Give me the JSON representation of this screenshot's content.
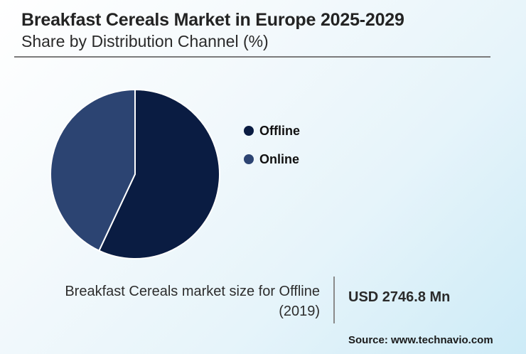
{
  "header": {
    "title": "Breakfast Cereals Market in Europe 2025-2029",
    "subtitle": "Share by Distribution Channel (%)"
  },
  "legend": [
    {
      "label": "Offline",
      "color": "#0a1c42"
    },
    {
      "label": "Online",
      "color": "#2c4472"
    }
  ],
  "stat": {
    "label": "Breakfast Cereals market size for Offline (2019)",
    "value": "USD 2746.8 Mn"
  },
  "source": "Source: www.technavio.com",
  "chart_data": {
    "type": "pie",
    "title": "Breakfast Cereals Market in Europe 2025-2029",
    "subtitle": "Share by Distribution Channel (%)",
    "categories": [
      "Offline",
      "Online"
    ],
    "values": [
      57,
      43
    ],
    "colors": [
      "#0a1c42",
      "#2c4472"
    ],
    "start_angle": "12 o'clock, clockwise",
    "legend_position": "right",
    "annotation": "Breakfast Cereals market size for Offline (2019): USD 2746.8 Mn"
  }
}
